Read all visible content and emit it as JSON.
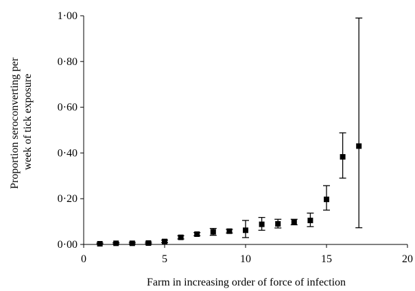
{
  "chart_data": {
    "type": "scatter",
    "xlabel": "Farm in increasing order of force of infection",
    "ylabel_lines": [
      "Proportion seroconverting per",
      "week of tick exposure"
    ],
    "xlim": [
      0,
      20
    ],
    "ylim": [
      0,
      1
    ],
    "x_ticks": [
      0,
      5,
      10,
      15,
      20
    ],
    "x_tick_labels": [
      "0",
      "5",
      "10",
      "15",
      "20"
    ],
    "y_ticks": [
      0,
      0.2,
      0.4,
      0.6,
      0.8,
      1.0
    ],
    "y_tick_labels": [
      "0·00",
      "0·20",
      "0·40",
      "0·60",
      "0·80",
      "1·00"
    ],
    "grid": false,
    "marker": "square",
    "error_bars": true,
    "points": [
      {
        "x": 1,
        "y": 0.003,
        "low": 0.001,
        "high": 0.006
      },
      {
        "x": 2,
        "y": 0.005,
        "low": 0.002,
        "high": 0.008
      },
      {
        "x": 3,
        "y": 0.005,
        "low": 0.002,
        "high": 0.009
      },
      {
        "x": 4,
        "y": 0.006,
        "low": 0.003,
        "high": 0.01
      },
      {
        "x": 5,
        "y": 0.013,
        "low": 0.008,
        "high": 0.019
      },
      {
        "x": 6,
        "y": 0.031,
        "low": 0.024,
        "high": 0.038
      },
      {
        "x": 7,
        "y": 0.045,
        "low": 0.038,
        "high": 0.052
      },
      {
        "x": 8,
        "y": 0.055,
        "low": 0.04,
        "high": 0.07
      },
      {
        "x": 9,
        "y": 0.058,
        "low": 0.05,
        "high": 0.066
      },
      {
        "x": 10,
        "y": 0.062,
        "low": 0.03,
        "high": 0.105
      },
      {
        "x": 11,
        "y": 0.088,
        "low": 0.062,
        "high": 0.118
      },
      {
        "x": 12,
        "y": 0.09,
        "low": 0.072,
        "high": 0.11
      },
      {
        "x": 13,
        "y": 0.097,
        "low": 0.086,
        "high": 0.11
      },
      {
        "x": 14,
        "y": 0.105,
        "low": 0.078,
        "high": 0.137
      },
      {
        "x": 15,
        "y": 0.197,
        "low": 0.15,
        "high": 0.257
      },
      {
        "x": 16,
        "y": 0.383,
        "low": 0.29,
        "high": 0.488
      },
      {
        "x": 17,
        "y": 0.43,
        "low": 0.073,
        "high": 0.99
      }
    ]
  }
}
